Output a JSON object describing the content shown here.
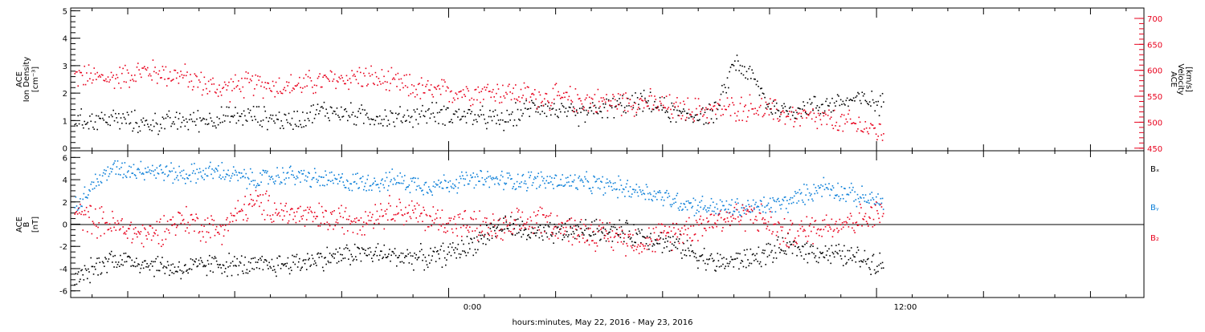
{
  "chart_data": [
    {
      "type": "scatter",
      "panel": "top",
      "ylabel_left": [
        "ACE",
        "Ion Density",
        "[cm⁻³]"
      ],
      "ylabel_right": [
        "ACE",
        "Velocity",
        "[km/s]"
      ],
      "y_left_ticks": [
        "0",
        "1",
        "2",
        "3",
        "4",
        "5"
      ],
      "y_right_ticks": [
        "450",
        "500",
        "550",
        "600",
        "650",
        "700"
      ],
      "ylim_left": [
        -0.1,
        5.1
      ],
      "ylim_right": [
        445,
        720
      ],
      "xlim_hours": [
        -10.6,
        19.5
      ],
      "series": [
        {
          "axis": "left",
          "color": "#000000",
          "x": [
            -10.5,
            -9.5,
            -8.5,
            -7.5,
            -6.5,
            -5.5,
            -4.5,
            -3.5,
            -2.5,
            -1.5,
            -0.5,
            0.5,
            1.5,
            2.5,
            3.5,
            4.5,
            5.5,
            6.5,
            7.5,
            8.0,
            8.5,
            9.0,
            9.5,
            10.5,
            11.5,
            12.2
          ],
          "y": [
            1.0,
            1.1,
            0.9,
            1.0,
            1.1,
            1.2,
            1.0,
            1.4,
            1.2,
            1.1,
            1.3,
            1.2,
            1.0,
            1.6,
            1.2,
            1.5,
            1.7,
            1.2,
            1.3,
            3.2,
            2.6,
            1.5,
            1.4,
            1.6,
            1.8,
            1.6
          ]
        },
        {
          "axis": "right",
          "color": "#e8001c",
          "x": [
            -10.5,
            -9.5,
            -8.5,
            -7.5,
            -6.5,
            -5.5,
            -4.5,
            -3.5,
            -2.5,
            -1.5,
            -0.5,
            0.5,
            1.5,
            2.5,
            3.5,
            4.5,
            5.5,
            6.5,
            7.5,
            8.5,
            9.5,
            10.5,
            11.5,
            12.2
          ],
          "y": [
            590,
            585,
            600,
            590,
            565,
            575,
            570,
            580,
            590,
            575,
            560,
            560,
            560,
            550,
            545,
            540,
            540,
            525,
            525,
            530,
            515,
            505,
            495,
            480
          ]
        }
      ]
    },
    {
      "type": "scatter",
      "panel": "bottom",
      "ylabel": [
        "ACE",
        "B",
        "[nT]"
      ],
      "y_ticks": [
        "-6",
        "-4",
        "-2",
        "0",
        "2",
        "4",
        "6"
      ],
      "ylim": [
        -6.6,
        6.6
      ],
      "xlim_hours": [
        -10.6,
        19.5
      ],
      "x_ticks": [
        "0:00",
        "12:00"
      ],
      "xlabel": "hours:minutes, May 22, 2016 - May 23, 2016",
      "legend": [
        "Bₓ",
        "Bᵧ",
        "B₂"
      ],
      "series": [
        {
          "name": "Bx",
          "color": "#000000",
          "x": [
            -10.5,
            -9.5,
            -8.5,
            -7.5,
            -6.5,
            -5.5,
            -4.5,
            -3.5,
            -2.5,
            -1.5,
            -0.5,
            0.5,
            1.5,
            2.5,
            3.5,
            4.5,
            5.5,
            6.5,
            7.5,
            8.5,
            9.5,
            10.5,
            11.5,
            12.2
          ],
          "y": [
            -5.0,
            -3.0,
            -3.5,
            -4.0,
            -3.5,
            -3.8,
            -3.5,
            -3.0,
            -2.5,
            -2.8,
            -3.0,
            -2.0,
            0.0,
            -1.0,
            -0.5,
            -0.5,
            -1.0,
            -2.0,
            -3.5,
            -3.0,
            -2.0,
            -2.5,
            -3.0,
            -3.5
          ]
        },
        {
          "name": "By",
          "color": "#0b7fd8",
          "x": [
            -10.5,
            -9.5,
            -8.5,
            -7.5,
            -6.5,
            -5.5,
            -4.5,
            -3.5,
            -2.5,
            -1.5,
            -0.5,
            0.5,
            1.5,
            2.5,
            3.5,
            4.5,
            5.5,
            6.5,
            7.5,
            8.5,
            9.5,
            10.5,
            11.5,
            12.2
          ],
          "y": [
            2.0,
            5.0,
            5.0,
            4.5,
            4.8,
            4.0,
            4.5,
            4.0,
            3.8,
            4.0,
            3.5,
            4.0,
            4.0,
            4.0,
            3.8,
            3.5,
            3.0,
            2.0,
            1.5,
            1.5,
            2.0,
            3.5,
            2.5,
            2.0
          ]
        },
        {
          "name": "Bz",
          "color": "#e8001c",
          "x": [
            -10.5,
            -9.5,
            -8.5,
            -7.5,
            -6.5,
            -5.5,
            -4.5,
            -3.5,
            -2.5,
            -1.5,
            -0.5,
            0.5,
            1.5,
            2.5,
            3.5,
            4.5,
            5.5,
            6.5,
            7.5,
            8.5,
            9.5,
            10.5,
            11.5,
            12.2
          ],
          "y": [
            1.0,
            0.0,
            -1.0,
            0.5,
            -0.5,
            2.0,
            1.0,
            0.5,
            0.5,
            1.5,
            0.5,
            0.0,
            -0.5,
            0.5,
            -0.5,
            -1.0,
            -1.5,
            -0.5,
            0.5,
            1.0,
            -1.0,
            0.0,
            0.5,
            1.0
          ]
        }
      ]
    }
  ]
}
